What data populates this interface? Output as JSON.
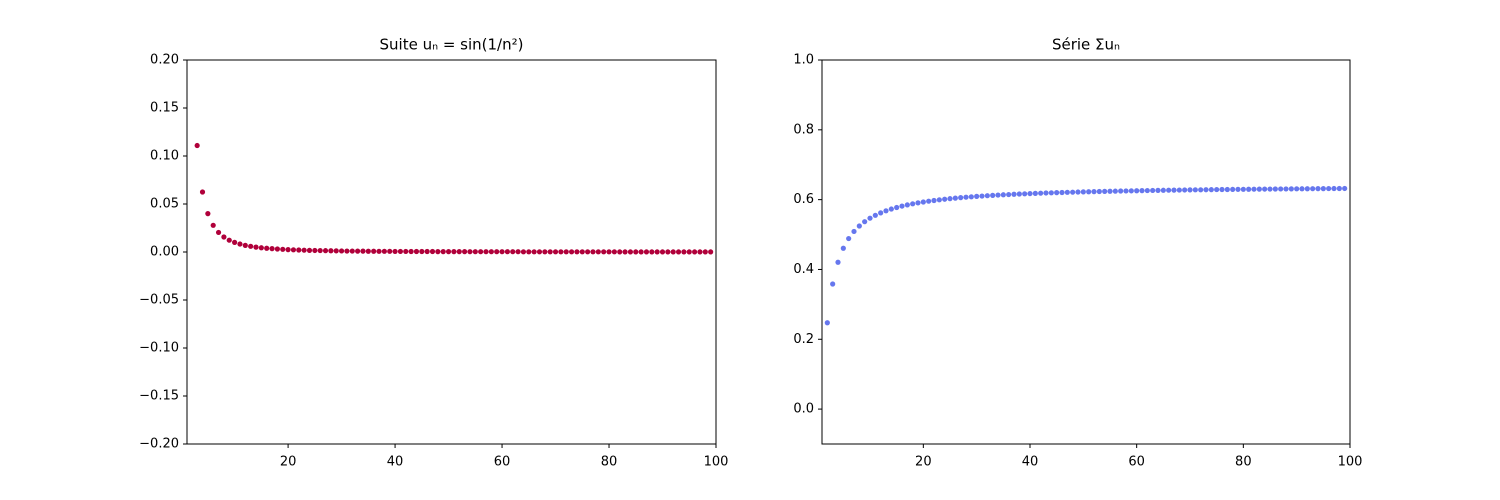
{
  "chart_data": [
    {
      "type": "scatter",
      "title": "Suite  uₙ = sin(1/n²)",
      "color": "#b0003a",
      "x": [
        3,
        4,
        5,
        6,
        7,
        8,
        9,
        10,
        11,
        12,
        13,
        14,
        15,
        16,
        17,
        18,
        19,
        20,
        21,
        22,
        23,
        24,
        25,
        26,
        27,
        28,
        29,
        30,
        31,
        32,
        33,
        34,
        35,
        36,
        37,
        38,
        39,
        40,
        41,
        42,
        43,
        44,
        45,
        46,
        47,
        48,
        49,
        50,
        51,
        52,
        53,
        54,
        55,
        56,
        57,
        58,
        59,
        60,
        61,
        62,
        63,
        64,
        65,
        66,
        67,
        68,
        69,
        70,
        71,
        72,
        73,
        74,
        75,
        76,
        77,
        78,
        79,
        80,
        81,
        82,
        83,
        84,
        85,
        86,
        87,
        88,
        89,
        90,
        91,
        92,
        93,
        94,
        95,
        96,
        97,
        98,
        99
      ],
      "values": [
        0.1109,
        0.0625,
        0.04,
        0.0278,
        0.0204,
        0.0156,
        0.0123,
        0.01,
        0.0083,
        0.0069,
        0.0059,
        0.0051,
        0.0044,
        0.0039,
        0.0035,
        0.0031,
        0.0028,
        0.0025,
        0.0023,
        0.0021,
        0.0019,
        0.0017,
        0.0016,
        0.0015,
        0.0014,
        0.0013,
        0.0012,
        0.0011,
        0.001,
        0.001,
        0.0009,
        0.0009,
        0.0008,
        0.0008,
        0.0007,
        0.0007,
        0.0007,
        0.0006,
        0.0006,
        0.0006,
        0.0005,
        0.0005,
        0.0005,
        0.0005,
        0.0005,
        0.0004,
        0.0004,
        0.0004,
        0.0004,
        0.0004,
        0.0004,
        0.0003,
        0.0003,
        0.0003,
        0.0003,
        0.0003,
        0.0003,
        0.0003,
        0.0003,
        0.0003,
        0.0003,
        0.0002,
        0.0002,
        0.0002,
        0.0002,
        0.0002,
        0.0002,
        0.0002,
        0.0002,
        0.0002,
        0.0002,
        0.0002,
        0.0002,
        0.0002,
        0.0002,
        0.0002,
        0.0002,
        0.0002,
        0.0002,
        0.0001,
        0.0001,
        0.0001,
        0.0001,
        0.0001,
        0.0001,
        0.0001,
        0.0001,
        0.0001,
        0.0001,
        0.0001,
        0.0001,
        0.0001,
        0.0001,
        0.0001,
        0.0001,
        0.0001,
        0.0001
      ],
      "xlim": [
        1.1,
        100
      ],
      "xticks": [
        20,
        40,
        60,
        80,
        100
      ],
      "ylim": [
        -0.2,
        0.2
      ],
      "yticks": [
        {
          "value": -0.2,
          "label": "−0.20"
        },
        {
          "value": -0.15,
          "label": "−0.15"
        },
        {
          "value": -0.1,
          "label": "−0.10"
        },
        {
          "value": -0.05,
          "label": "−0.05"
        },
        {
          "value": 0,
          "label": "0.00"
        },
        {
          "value": 0.05,
          "label": "0.05"
        },
        {
          "value": 0.1,
          "label": "0.10"
        },
        {
          "value": 0.15,
          "label": "0.15"
        },
        {
          "value": 0.2,
          "label": "0.20"
        }
      ],
      "grid": false
    },
    {
      "type": "scatter",
      "title": "Série Σuₙ",
      "color": "#6677ee",
      "x": [
        2,
        3,
        4,
        5,
        6,
        7,
        8,
        9,
        10,
        11,
        12,
        13,
        14,
        15,
        16,
        17,
        18,
        19,
        20,
        21,
        22,
        23,
        24,
        25,
        26,
        27,
        28,
        29,
        30,
        31,
        32,
        33,
        34,
        35,
        36,
        37,
        38,
        39,
        40,
        41,
        42,
        43,
        44,
        45,
        46,
        47,
        48,
        49,
        50,
        51,
        52,
        53,
        54,
        55,
        56,
        57,
        58,
        59,
        60,
        61,
        62,
        63,
        64,
        65,
        66,
        67,
        68,
        69,
        70,
        71,
        72,
        73,
        74,
        75,
        76,
        77,
        78,
        79,
        80,
        81,
        82,
        83,
        84,
        85,
        86,
        87,
        88,
        89,
        90,
        91,
        92,
        93,
        94,
        95,
        96,
        97,
        98,
        99
      ],
      "values": [
        0.2474,
        0.3583,
        0.4207,
        0.4607,
        0.4885,
        0.5089,
        0.5245,
        0.5369,
        0.5469,
        0.5551,
        0.5621,
        0.568,
        0.5731,
        0.5775,
        0.5815,
        0.5849,
        0.588,
        0.5908,
        0.5933,
        0.5955,
        0.5976,
        0.5995,
        0.6012,
        0.6028,
        0.6043,
        0.6057,
        0.607,
        0.6081,
        0.6093,
        0.6103,
        0.6113,
        0.6122,
        0.6131,
        0.6139,
        0.6146,
        0.6154,
        0.6161,
        0.6167,
        0.6173,
        0.6179,
        0.6185,
        0.6191,
        0.6196,
        0.6201,
        0.6205,
        0.621,
        0.6214,
        0.6218,
        0.6222,
        0.6226,
        0.623,
        0.6233,
        0.6237,
        0.624,
        0.6243,
        0.6247,
        0.6249,
        0.6252,
        0.6255,
        0.6258,
        0.626,
        0.6263,
        0.6265,
        0.6268,
        0.627,
        0.6272,
        0.6274,
        0.6277,
        0.6279,
        0.6281,
        0.6282,
        0.6284,
        0.6286,
        0.6288,
        0.629,
        0.6291,
        0.6293,
        0.6295,
        0.6296,
        0.6298,
        0.6299,
        0.6301,
        0.6302,
        0.6303,
        0.6305,
        0.6306,
        0.6307,
        0.6309,
        0.631,
        0.6311,
        0.6312,
        0.6313,
        0.6315,
        0.6316,
        0.6317,
        0.6318,
        0.6319,
        0.632
      ],
      "xlim": [
        1,
        100
      ],
      "xticks": [
        20,
        40,
        60,
        80,
        100
      ],
      "ylim": [
        -0.1,
        1.0
      ],
      "yticks": [
        {
          "value": 0,
          "label": "0.0"
        },
        {
          "value": 0.2,
          "label": "0.2"
        },
        {
          "value": 0.4,
          "label": "0.4"
        },
        {
          "value": 0.6,
          "label": "0.6"
        },
        {
          "value": 0.8,
          "label": "0.8"
        },
        {
          "value": 1.0,
          "label": "1.0"
        }
      ],
      "grid": false
    }
  ]
}
